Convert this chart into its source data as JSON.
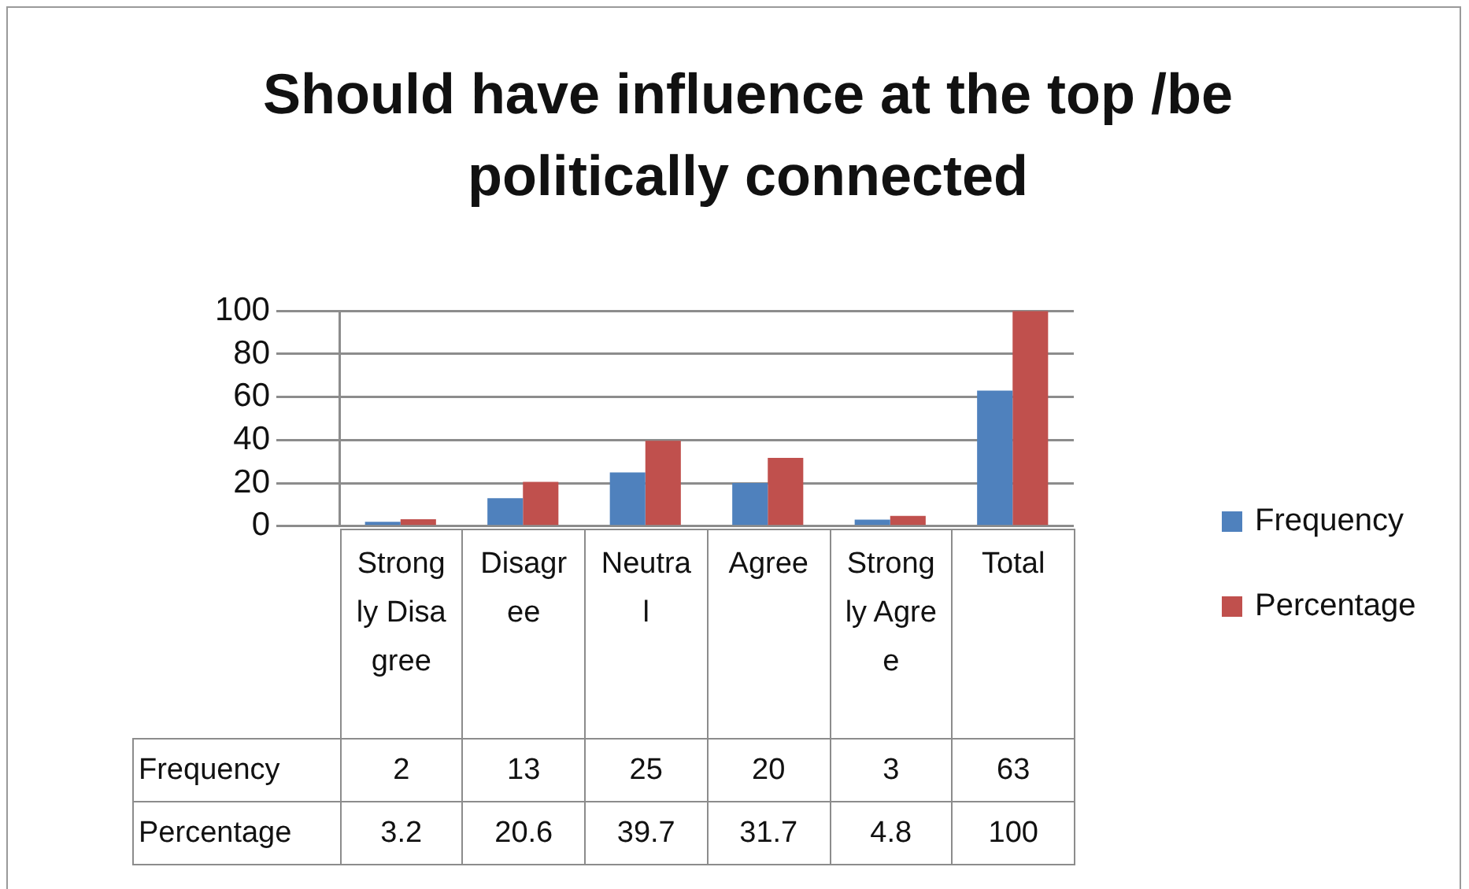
{
  "chart_data": {
    "type": "bar",
    "title": "Should have influence at the top /be politically connected",
    "categories": [
      "Strongly Disagree",
      "Disagree",
      "Neutral",
      "Agree",
      "Strongly Agree",
      "Total"
    ],
    "series": [
      {
        "name": "Frequency",
        "color": "#4f81bd",
        "values": [
          2,
          13,
          25,
          20,
          3,
          63
        ]
      },
      {
        "name": "Percentage",
        "color": "#c0504d",
        "values": [
          3.2,
          20.6,
          39.7,
          31.7,
          4.8,
          100
        ]
      }
    ],
    "ylim": [
      0,
      100
    ],
    "yticks": [
      0,
      20,
      40,
      60,
      80,
      100
    ],
    "grid": true,
    "legend": "right",
    "data_labels": true
  }
}
